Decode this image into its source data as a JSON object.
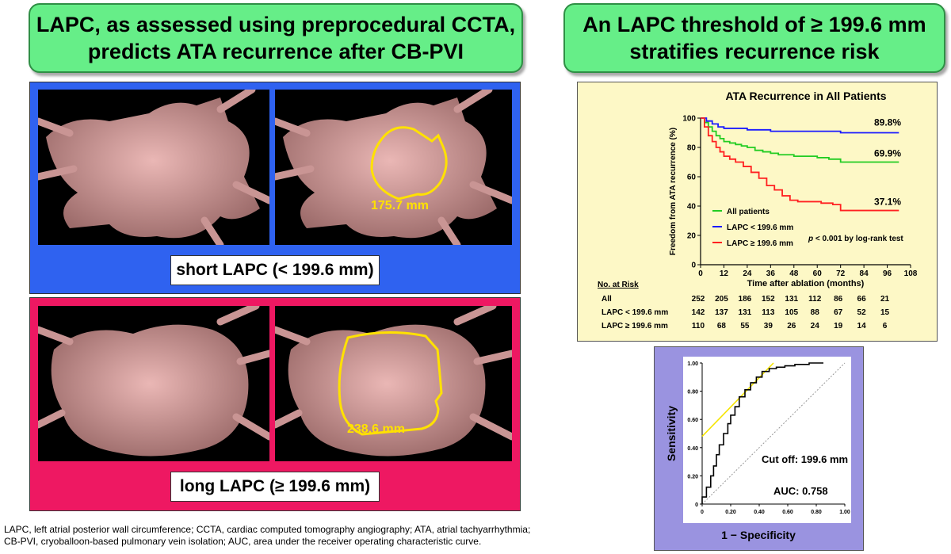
{
  "left_title": {
    "line1": "LAPC, as assessed using preprocedural CCTA,",
    "line2": "predicts ATA recurrence after CB-PVI"
  },
  "right_title": {
    "line1": "An LAPC threshold of ≥ 199.6 mm",
    "line2": "stratifies recurrence risk"
  },
  "short_panel": {
    "label": "short LAPC (< 199.6 mm)",
    "measurement": "175.7 mm",
    "color": "#2f62f0"
  },
  "long_panel": {
    "label": "long LAPC (≥ 199.6 mm)",
    "measurement": "238.6 mm",
    "color": "#ee1862"
  },
  "footnote": {
    "line1": "LAPC, left atrial posterior wall circumference; CCTA, cardiac computed tomography angiography; ATA, atrial tachyarrhythmia;",
    "line2": "CB-PVI, cryoballoon-based pulmonary vein isolation; AUC, area under the receiver operating characteristic curve."
  },
  "km": {
    "risk_header": "No. at Risk",
    "risk_rows": [
      {
        "label": "All",
        "values": [
          "252",
          "205",
          "186",
          "152",
          "131",
          "112",
          "86",
          "66",
          "21"
        ]
      },
      {
        "label": "LAPC < 199.6 mm",
        "values": [
          "142",
          "137",
          "131",
          "113",
          "105",
          "88",
          "67",
          "52",
          "15"
        ]
      },
      {
        "label": "LAPC ≥ 199.6 mm",
        "values": [
          "110",
          "68",
          "55",
          "39",
          "26",
          "24",
          "19",
          "14",
          "6"
        ]
      }
    ]
  },
  "chart_data": [
    {
      "type": "line",
      "title": "ATA Recurrence in All Patients",
      "xlabel": "Time after ablation (months)",
      "ylabel": "Freedom from ATA recurrence (%)",
      "xlim": [
        0,
        108
      ],
      "ylim": [
        0,
        100
      ],
      "xticks": [
        "0",
        "12",
        "24",
        "36",
        "48",
        "60",
        "72",
        "84",
        "96",
        "108"
      ],
      "yticks": [
        "0",
        "20",
        "40",
        "60",
        "80",
        "100"
      ],
      "legend": "bottom-left",
      "annotation": "p < 0.001 by log-rank test",
      "series": [
        {
          "name": "All patients",
          "color": "#22cc22",
          "end_label": "69.9%",
          "x": [
            0,
            2,
            4,
            6,
            8,
            10,
            12,
            15,
            18,
            21,
            24,
            28,
            32,
            36,
            40,
            44,
            48,
            52,
            56,
            60,
            66,
            72,
            78,
            84,
            90,
            96,
            102
          ],
          "y": [
            100,
            97,
            94,
            91,
            88,
            86,
            84,
            83,
            82,
            81,
            80,
            78,
            77,
            76,
            75,
            75,
            74,
            74,
            74,
            73,
            72,
            70,
            70,
            70,
            70,
            70,
            70
          ]
        },
        {
          "name": "LAPC < 199.6 mm",
          "color": "#1a1aff",
          "end_label": "89.8%",
          "x": [
            0,
            3,
            6,
            9,
            12,
            18,
            24,
            30,
            36,
            48,
            60,
            72,
            84,
            96,
            102
          ],
          "y": [
            100,
            98,
            96,
            94,
            93,
            93,
            92,
            92,
            91,
            91,
            91,
            90,
            90,
            90,
            90
          ]
        },
        {
          "name": "LAPC ≥ 199.6 mm",
          "color": "#ff2020",
          "end_label": "37.1%",
          "x": [
            0,
            2,
            4,
            6,
            8,
            10,
            12,
            15,
            18,
            22,
            26,
            30,
            34,
            38,
            42,
            46,
            50,
            56,
            62,
            68,
            72,
            78,
            84,
            90,
            96,
            102
          ],
          "y": [
            100,
            94,
            88,
            84,
            80,
            77,
            74,
            72,
            70,
            67,
            63,
            59,
            54,
            51,
            47,
            44,
            43,
            43,
            42,
            41,
            37,
            37,
            37,
            37,
            37,
            37
          ]
        }
      ]
    },
    {
      "type": "line",
      "title": "",
      "xlabel": "1 − Specificity",
      "ylabel": "Sensitivity",
      "xlim": [
        0,
        1
      ],
      "ylim": [
        0,
        1
      ],
      "xticks": [
        "0",
        "0.20",
        "0.40",
        "0.60",
        "0.80",
        "1.00"
      ],
      "yticks": [
        "0",
        "0.20",
        "0.40",
        "0.60",
        "0.80",
        "1.00"
      ],
      "annotations": [
        "Cut off: 199.6 mm",
        "AUC: 0.758"
      ],
      "series": [
        {
          "name": "",
          "color": "#000000",
          "x": [
            0,
            0.03,
            0.06,
            0.08,
            0.1,
            0.12,
            0.15,
            0.18,
            0.2,
            0.23,
            0.26,
            0.3,
            0.34,
            0.38,
            0.42,
            0.47,
            0.52,
            0.58,
            0.65,
            0.75,
            0.85
          ],
          "y": [
            0,
            0.05,
            0.12,
            0.2,
            0.27,
            0.35,
            0.42,
            0.5,
            0.57,
            0.63,
            0.69,
            0.76,
            0.81,
            0.86,
            0.9,
            0.94,
            0.96,
            0.97,
            0.98,
            0.99,
            1.0
          ]
        },
        {
          "name": "",
          "color": "#f5e400",
          "x": [
            0,
            0.5
          ],
          "y": [
            0.48,
            1.0
          ]
        },
        {
          "name": "",
          "color": "#999999",
          "x": [
            0,
            1
          ],
          "y": [
            0,
            1
          ]
        }
      ]
    }
  ]
}
